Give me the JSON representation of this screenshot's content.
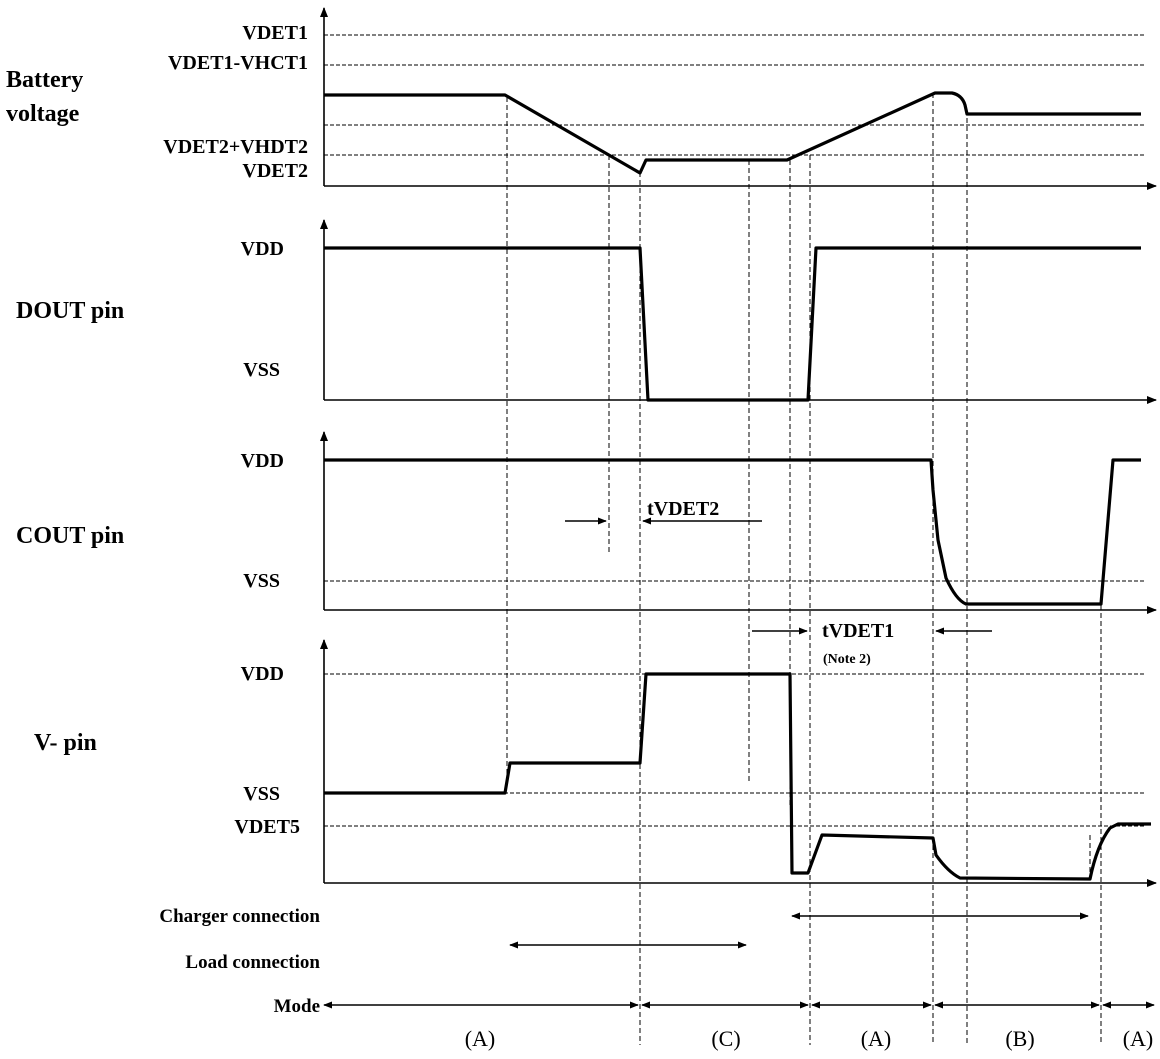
{
  "panels": {
    "battery": {
      "title_line1": "Battery",
      "title_line2": "voltage",
      "levels": [
        "VDET1",
        "VDET1-VHCT1",
        "VDET2+VHDT2",
        "VDET2"
      ]
    },
    "dout": {
      "title": "DOUT pin",
      "high": "VDD",
      "low": "VSS"
    },
    "cout": {
      "title": "COUT pin",
      "high": "VDD",
      "low": "VSS"
    },
    "vminus": {
      "title": "V- pin",
      "high": "VDD",
      "mid": "VSS",
      "low": "VDET5"
    }
  },
  "timing": {
    "tvdet2": "tVDET2",
    "tvdet1": "tVDET1",
    "note": "(Note 2)"
  },
  "connections": {
    "charger": "Charger connection",
    "load": "Load connection"
  },
  "mode": {
    "label": "Mode",
    "segments": [
      "(A)",
      "(C)",
      "(A)",
      "(B)",
      "(A)"
    ]
  }
}
